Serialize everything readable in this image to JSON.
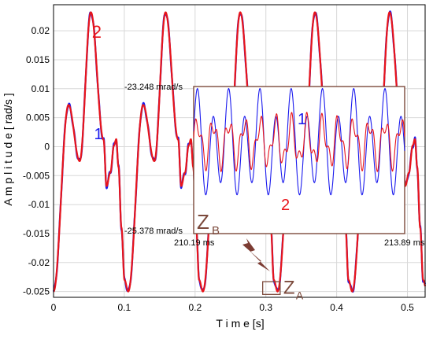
{
  "chart_data": [
    {
      "type": "line",
      "title": "",
      "xlabel": "T i m e [s]",
      "ylabel": "A m p l i t u d e [ rad/s ]",
      "xlim": [
        0,
        0.525
      ],
      "ylim": [
        -0.026,
        0.0245
      ],
      "xticks": [
        0,
        0.1,
        0.2,
        0.3,
        0.4,
        0.5
      ],
      "xtick_labels": [
        "0",
        "0.1",
        "0.2",
        "0.3",
        "0.4",
        "0.5"
      ],
      "yticks": [
        0.02,
        0.015,
        0.01,
        0.005,
        0,
        -0.005,
        -0.01,
        -0.015,
        -0.02,
        -0.025
      ],
      "ytick_labels": [
        "0.02",
        "0.015",
        "0.01",
        "0.005",
        "0",
        "-0.005",
        "-0.01",
        "-0.015",
        "-0.02",
        "-0.025"
      ],
      "grid": true,
      "period": 0.1055,
      "waveform_one_period": {
        "phase": [
          0,
          0.2,
          0.35,
          0.5,
          0.67,
          0.71,
          0.76,
          0.81,
          0.84,
          0.87,
          0.91,
          0.95,
          1.0
        ],
        "value": [
          -0.025,
          0.0072,
          -0.0025,
          0.0232,
          0.0012,
          -0.0068,
          -0.0045,
          0.0002,
          0.0013,
          -0.0035,
          -0.014,
          -0.023,
          -0.025
        ]
      },
      "series": [
        {
          "name": "1",
          "color": "#1a1aee"
        },
        {
          "name": "2",
          "color": "#e8141a"
        }
      ],
      "series_labels": [
        {
          "text": "2",
          "color": "#e8141a",
          "x": 0.061,
          "y": 0.0188
        },
        {
          "text": "1",
          "color": "#1a1aee",
          "x": 0.0635,
          "y": 0.0013
        }
      ],
      "zoom_marker": {
        "label_main": "Z",
        "label_sub": "A",
        "x_range": [
          0.2955,
          0.3202
        ],
        "y_range": [
          -0.0255,
          -0.0233
        ]
      }
    },
    {
      "type": "line",
      "title": "Zoom Z_B",
      "label_main": "Z",
      "label_sub": "B",
      "xlim": [
        210.19,
        213.89
      ],
      "ylim": [
        -25.378,
        -23.248
      ],
      "x_range_labels": [
        "210.19 ms",
        "213.89 ms"
      ],
      "y_range_labels": [
        "-23.248 mrad/s",
        "-25.378 mrad/s"
      ],
      "x_unit": "ms",
      "y_unit": "mrad/s",
      "cycles": 13.5,
      "series": [
        {
          "name": "1",
          "color": "#1a1aee",
          "center": -24.1,
          "amplitude": 0.62
        },
        {
          "name": "2",
          "color": "#e8141a",
          "center": -24.05,
          "amplitude": 0.28
        }
      ],
      "series_labels": [
        {
          "text": "1",
          "color": "#1a1aee"
        },
        {
          "text": "2",
          "color": "#e8141a"
        }
      ]
    }
  ]
}
